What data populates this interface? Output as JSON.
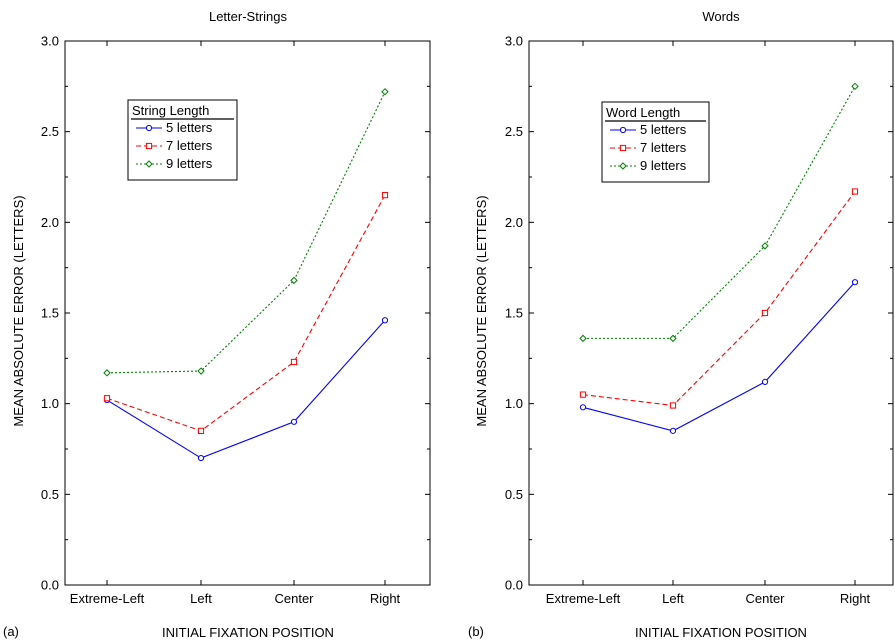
{
  "chart_data": [
    {
      "type": "line",
      "panel_label": "(a)",
      "title": "Letter-Strings",
      "xlabel": "INITIAL FIXATION POSITION",
      "ylabel": "MEAN ABSOLUTE ERROR (LETTERS)",
      "categories": [
        "Extreme-Left",
        "Left",
        "Center",
        "Right"
      ],
      "ylim": [
        0,
        3
      ],
      "yticks": [
        "0.0",
        "0.5",
        "1.0",
        "1.5",
        "2.0",
        "2.5",
        "3.0"
      ],
      "grid": false,
      "legend_title": "String Length",
      "legend_position": "upper-left",
      "series": [
        {
          "name": "5 letters",
          "values": [
            1.02,
            0.7,
            0.9,
            1.46
          ],
          "color": "#0000ff",
          "dash": "solid",
          "marker": "circle"
        },
        {
          "name": "7 letters",
          "values": [
            1.03,
            0.85,
            1.23,
            2.15
          ],
          "color": "#ff0000",
          "dash": "dashed",
          "marker": "square"
        },
        {
          "name": "9 letters",
          "values": [
            1.17,
            1.18,
            1.68,
            2.72
          ],
          "color": "#008000",
          "dash": "dotted",
          "marker": "diamond"
        }
      ]
    },
    {
      "type": "line",
      "panel_label": "(b)",
      "title": "Words",
      "xlabel": "INITIAL FIXATION POSITION",
      "ylabel": "MEAN ABSOLUTE ERROR (LETTERS)",
      "categories": [
        "Extreme-Left",
        "Left",
        "Center",
        "Right"
      ],
      "ylim": [
        0,
        3
      ],
      "yticks": [
        "0.0",
        "0.5",
        "1.0",
        "1.5",
        "2.0",
        "2.5",
        "3.0"
      ],
      "grid": false,
      "legend_title": "Word Length",
      "legend_position": "upper-left",
      "series": [
        {
          "name": "5 letters",
          "values": [
            0.98,
            0.85,
            1.12,
            1.67
          ],
          "color": "#0000ff",
          "dash": "solid",
          "marker": "circle"
        },
        {
          "name": "7 letters",
          "values": [
            1.05,
            0.99,
            1.5,
            2.17
          ],
          "color": "#ff0000",
          "dash": "dashed",
          "marker": "square"
        },
        {
          "name": "9 letters",
          "values": [
            1.36,
            1.36,
            1.87,
            2.75
          ],
          "color": "#008000",
          "dash": "dotted",
          "marker": "diamond"
        }
      ]
    }
  ]
}
